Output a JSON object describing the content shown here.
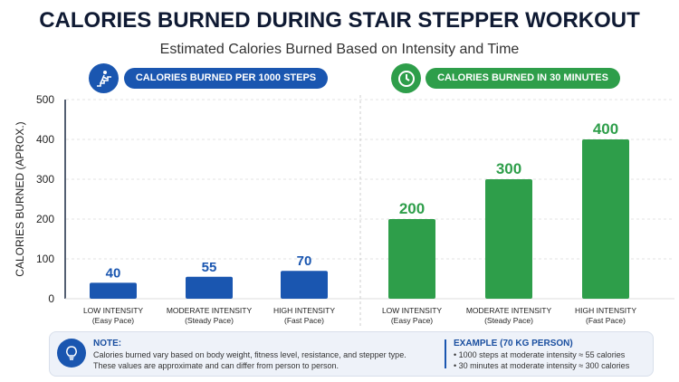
{
  "title": "CALORIES BURNED DURING STAIR STEPPER WORKOUT",
  "subtitle": "Estimated Calories Burned Based on Intensity and Time",
  "colors": {
    "blue": "#1a56b0",
    "green": "#2e9e4a"
  },
  "chart_data": {
    "type": "bar",
    "ylabel": "CALORIES BURNED (APROX.)",
    "ylim": [
      0,
      500
    ],
    "yticks": [
      0,
      100,
      200,
      300,
      400,
      500
    ],
    "grid": true,
    "groups": [
      {
        "name": "CALORIES BURNED PER 1000 STEPS",
        "icon": "stair-climber-icon",
        "color": "#1a56b0",
        "categories": [
          [
            "LOW INTENSITY",
            "(Easy Pace)"
          ],
          [
            "MODERATE INTENSITY",
            "(Steady Pace)"
          ],
          [
            "HIGH INTENSITY",
            "(Fast Pace)"
          ]
        ],
        "values": [
          40,
          55,
          70
        ]
      },
      {
        "name": "CALORIES BURNED IN 30 MINUTES",
        "icon": "clock-icon",
        "color": "#2e9e4a",
        "categories": [
          [
            "LOW INTENSITY",
            "(Easy Pace)"
          ],
          [
            "MODERATE INTENSITY",
            "(Steady Pace)"
          ],
          [
            "HIGH INTENSITY",
            "(Fast Pace)"
          ]
        ],
        "values": [
          200,
          300,
          400
        ]
      }
    ]
  },
  "note": {
    "heading": "NOTE:",
    "lines": [
      "Calories burned vary based on body weight, fitness level, resistance, and stepper type.",
      "These values are approximate and can differ from person to person."
    ]
  },
  "example": {
    "heading": "EXAMPLE (70 KG PERSON)",
    "lines": [
      "• 1000 steps at moderate intensity ≈ 55 calories",
      "• 30 minutes at moderate intensity ≈ 300 calories"
    ]
  }
}
